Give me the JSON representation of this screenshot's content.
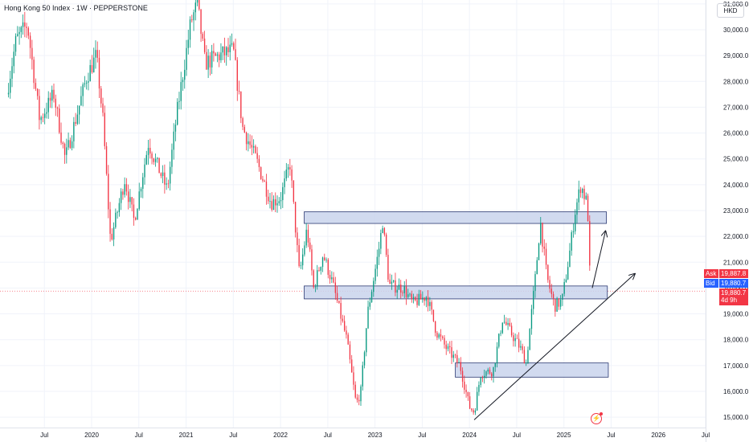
{
  "header": {
    "title": "Hong Kong 50 Index · 1W · PEPPERSTONE",
    "currency": "HKD"
  },
  "price_tags": {
    "ask_label": "Ask",
    "ask_value": "19,887.8",
    "bid_label": "Bid",
    "bid_value": "19,880.7",
    "last_value": "19,880.7",
    "countdown": "4d 9h"
  },
  "colors": {
    "up": "#089981",
    "down": "#f23645",
    "zone_fill": "#c9d3ec",
    "zone_stroke": "#2c3a73",
    "ask": "#f23645",
    "bid": "#2962ff",
    "text": "#131722",
    "grid": "#f0f3fa"
  },
  "chart_data": {
    "type": "candlestick",
    "interval": "1W",
    "symbol": "Hong Kong 50 Index",
    "source": "PEPPERSTONE",
    "y_ticks": [
      15000,
      16000,
      17000,
      18000,
      19000,
      20000,
      21000,
      22000,
      23000,
      24000,
      25000,
      26000,
      27000,
      28000,
      29000,
      30000,
      31000
    ],
    "y_tick_labels": [
      "15,000.0",
      "16,000.0",
      "17,000.0",
      "18,000.0",
      "19,000.0",
      "20,000.0",
      "21,000.0",
      "22,000.0",
      "23,000.0",
      "24,000.0",
      "25,000.0",
      "26,000.0",
      "27,000.0",
      "28,000.0",
      "29,000.0",
      "30,000.0",
      "31,000.0"
    ],
    "x_ticks": [
      2019.5,
      2020.0,
      2020.5,
      2021.0,
      2021.5,
      2022.0,
      2022.5,
      2023.0,
      2023.5,
      2024.0,
      2024.5,
      2025.0,
      2025.5,
      2026.0,
      2026.5
    ],
    "x_tick_labels": [
      "Jul",
      "2020",
      "Jul",
      "2021",
      "Jul",
      "2022",
      "Jul",
      "2023",
      "Jul",
      "2024",
      "Jul",
      "2025",
      "Jul",
      "2026",
      "Jul"
    ],
    "price_path": [
      [
        2019.1,
        27500
      ],
      [
        2019.2,
        29600
      ],
      [
        2019.32,
        30200
      ],
      [
        2019.45,
        26500
      ],
      [
        2019.6,
        27500
      ],
      [
        2019.72,
        25000
      ],
      [
        2019.85,
        26800
      ],
      [
        2019.95,
        28200
      ],
      [
        2020.05,
        29000
      ],
      [
        2020.12,
        26500
      ],
      [
        2020.2,
        21800
      ],
      [
        2020.35,
        24200
      ],
      [
        2020.45,
        22600
      ],
      [
        2020.6,
        25600
      ],
      [
        2020.8,
        23800
      ],
      [
        2020.9,
        26700
      ],
      [
        2021.05,
        30300
      ],
      [
        2021.12,
        31000
      ],
      [
        2021.2,
        28700
      ],
      [
        2021.35,
        29000
      ],
      [
        2021.5,
        29200
      ],
      [
        2021.6,
        26200
      ],
      [
        2021.75,
        24900
      ],
      [
        2021.9,
        23300
      ],
      [
        2022.0,
        23500
      ],
      [
        2022.1,
        24800
      ],
      [
        2022.2,
        20500
      ],
      [
        2022.28,
        22300
      ],
      [
        2022.35,
        20000
      ],
      [
        2022.45,
        21300
      ],
      [
        2022.55,
        20200
      ],
      [
        2022.7,
        18000
      ],
      [
        2022.8,
        15500
      ],
      [
        2022.85,
        16000
      ],
      [
        2022.92,
        19000
      ],
      [
        2023.05,
        21700
      ],
      [
        2023.08,
        22600
      ],
      [
        2023.15,
        20100
      ],
      [
        2023.3,
        20000
      ],
      [
        2023.4,
        19400
      ],
      [
        2023.55,
        19700
      ],
      [
        2023.65,
        18300
      ],
      [
        2023.75,
        17700
      ],
      [
        2023.9,
        17000
      ],
      [
        2024.0,
        15400
      ],
      [
        2024.05,
        15200
      ],
      [
        2024.12,
        16700
      ],
      [
        2024.25,
        16800
      ],
      [
        2024.35,
        18800
      ],
      [
        2024.45,
        18200
      ],
      [
        2024.55,
        17600
      ],
      [
        2024.6,
        17100
      ],
      [
        2024.7,
        20500
      ],
      [
        2024.75,
        22600
      ],
      [
        2024.82,
        20400
      ],
      [
        2024.9,
        19300
      ],
      [
        2024.98,
        19500
      ],
      [
        2025.05,
        21100
      ],
      [
        2025.12,
        23000
      ],
      [
        2025.18,
        24000
      ],
      [
        2025.25,
        23200
      ],
      [
        2025.27,
        21000
      ],
      [
        2025.28,
        19880
      ]
    ],
    "zones": [
      {
        "x_start": 2022.25,
        "x_end": 2025.45,
        "y_low": 22500,
        "y_high": 22950
      },
      {
        "x_start": 2022.25,
        "x_end": 2025.46,
        "y_low": 19580,
        "y_high": 20080
      },
      {
        "x_start": 2023.85,
        "x_end": 2025.47,
        "y_low": 16550,
        "y_high": 17100
      }
    ],
    "trendline": {
      "x1": 2024.05,
      "y1": 14900,
      "x2": 2025.75,
      "y2": 20550
    },
    "projection_arrow": {
      "x1": 2025.3,
      "y1": 20000,
      "x2": 2025.44,
      "y2": 22200
    },
    "last_price": 19880.7,
    "ylim": [
      14600,
      31150
    ],
    "xlim": [
      2019.03,
      2026.5
    ]
  }
}
